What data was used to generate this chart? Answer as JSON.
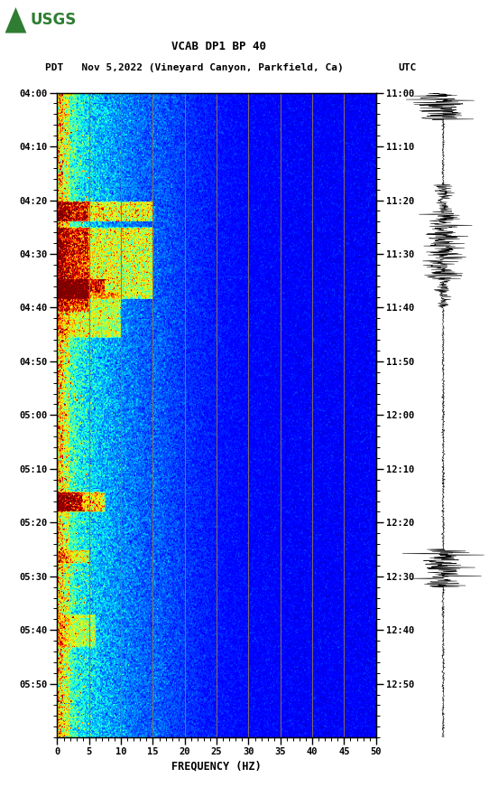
{
  "title_line1": "VCAB DP1 BP 40",
  "title_line2_left": "PDT   Nov 5,2022 (Vineyard Canyon, Parkfield, Ca)",
  "title_line2_right": "UTC",
  "left_yticks": [
    "04:00",
    "04:10",
    "04:20",
    "04:30",
    "04:40",
    "04:50",
    "05:00",
    "05:10",
    "05:20",
    "05:30",
    "05:40",
    "05:50"
  ],
  "right_yticks": [
    "11:00",
    "11:10",
    "11:20",
    "11:30",
    "11:40",
    "11:50",
    "12:00",
    "12:10",
    "12:20",
    "12:30",
    "12:40",
    "12:50"
  ],
  "xticks": [
    0,
    5,
    10,
    15,
    20,
    25,
    30,
    35,
    40,
    45,
    50
  ],
  "xlabel": "FREQUENCY (HZ)",
  "freq_min": 0,
  "freq_max": 50,
  "vgrid_freqs": [
    5,
    10,
    15,
    20,
    25,
    30,
    35,
    40,
    45
  ],
  "background_color": "#ffffff",
  "colormap": "jet",
  "grid_color": "#8B7355"
}
